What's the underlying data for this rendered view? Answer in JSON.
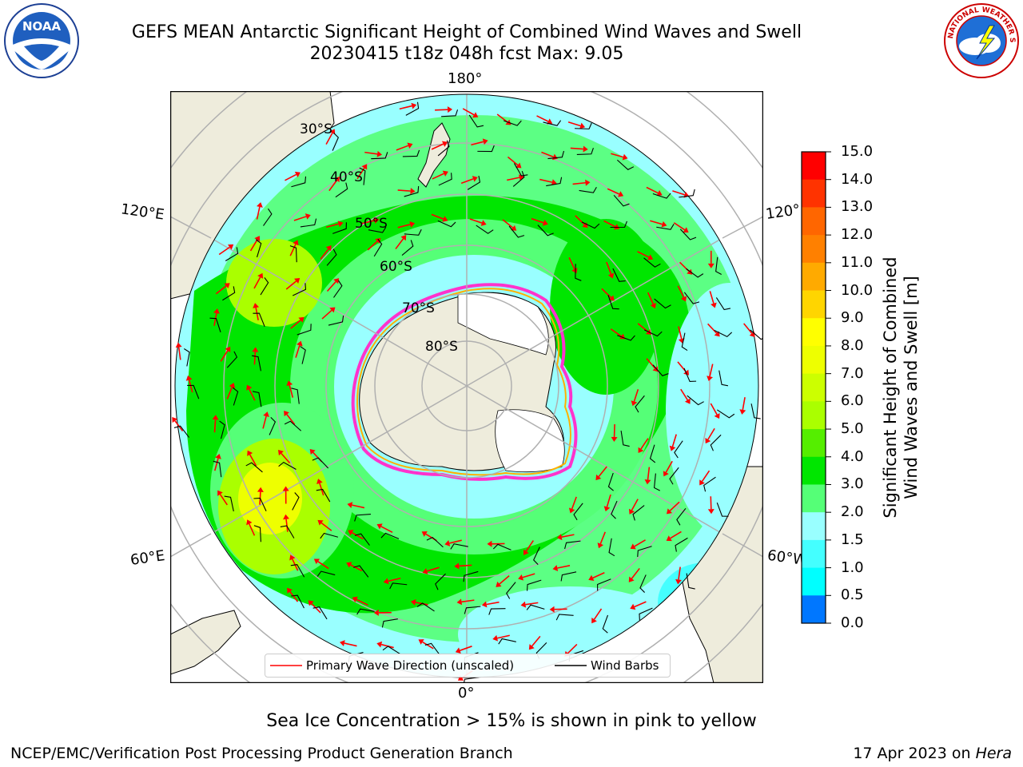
{
  "title": {
    "line1": "GEFS MEAN Antarctic Significant Height of Combined Wind Waves and Swell",
    "line2": "20230415 t18z 048h fcst   Max: 9.05"
  },
  "logos": {
    "noaa": "NOAA",
    "noaa_ring": "NATIONAL OCEANIC AND ATMOSPHERIC ADMINISTRATION · U.S. DEPARTMENT OF COMMERCE",
    "nws_ring": "NATIONAL WEATHER SERVICE"
  },
  "map": {
    "projection": "south-polar-stereographic",
    "longitude_labels": {
      "top": "180°",
      "bottom": "0°",
      "upper_left": "120°E",
      "lower_left": "60°E",
      "upper_right": "120°",
      "lower_right": "60°W"
    },
    "latitude_labels": [
      "30°S",
      "40°S",
      "50°S",
      "60°S",
      "70°S",
      "80°S"
    ],
    "colors": {
      "land": "#eeecdc",
      "ice_shelf": "#ffffff",
      "sea_ice_edge": "#ff33cc",
      "sea_ice_inner": "#ffb000",
      "grid": "#b0b0b0",
      "wave_arrow": "#ff0000",
      "wind_barb": "#000000"
    }
  },
  "legend": {
    "primary_wave": "Primary Wave Direction (unscaled)",
    "wind_barbs": "Wind Barbs"
  },
  "colorbar": {
    "label_line1": "Significant Height of Combined",
    "label_line2": "Wind Waves and Swell [m]",
    "ticks": [
      "15.0",
      "14.0",
      "13.0",
      "12.0",
      "11.0",
      "10.0",
      "9.0",
      "8.0",
      "7.0",
      "6.0",
      "5.0",
      "4.0",
      "3.0",
      "2.0",
      "1.5",
      "1.0",
      "0.5",
      "0.0"
    ],
    "colors": [
      "#ff0000",
      "#ff3300",
      "#ff6600",
      "#ff8000",
      "#ffaa00",
      "#ffd500",
      "#ffff00",
      "#eeff00",
      "#ccff00",
      "#aaff00",
      "#55ee00",
      "#00e600",
      "#55ff77",
      "#99ffff",
      "#44ffff",
      "#00ffff",
      "#0077ff",
      "#0000ff"
    ]
  },
  "notes": {
    "sea_ice": "Sea Ice Concentration > 15% is shown in pink to yellow"
  },
  "footer": {
    "left": "NCEP/EMC/Verification Post Processing Product Generation Branch",
    "date": "17 Apr 2023 on ",
    "host": "Hera"
  }
}
